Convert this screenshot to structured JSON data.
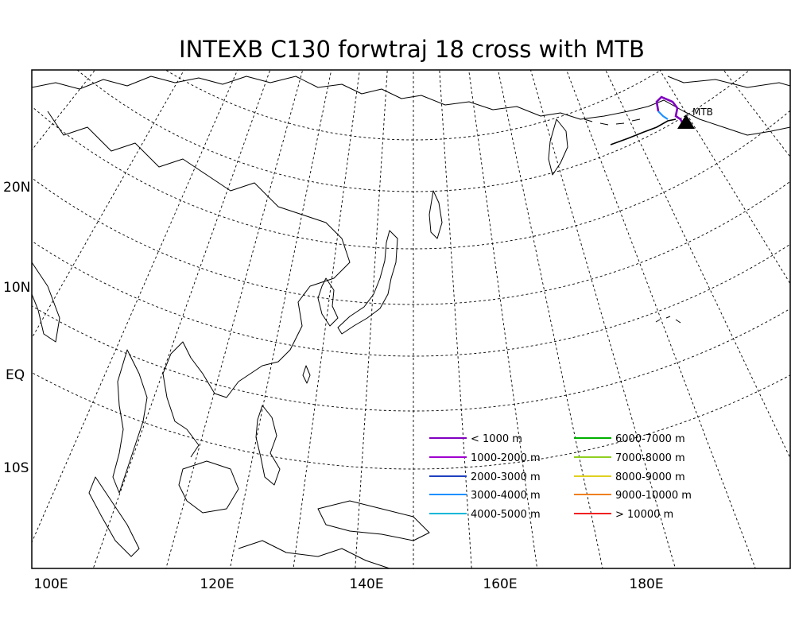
{
  "title": "INTEXB C130 forwtraj 18 cross with MTB",
  "lat_labels": [
    "20N",
    "10N",
    "EQ",
    "10S"
  ],
  "lon_labels": [
    "100E",
    "120E",
    "140E",
    "160E",
    "180E"
  ],
  "site": {
    "label": "MTB"
  },
  "legend": {
    "left": [
      {
        "label": "<  1000  m",
        "color": "#8000c0"
      },
      {
        "label": "1000-2000  m",
        "color": "#a000d0"
      },
      {
        "label": "2000-3000  m",
        "color": "#2040c0"
      },
      {
        "label": "3000-4000  m",
        "color": "#1e90ff"
      },
      {
        "label": "4000-5000  m",
        "color": "#00b8d8"
      }
    ],
    "right": [
      {
        "label": "6000-7000  m",
        "color": "#00b000"
      },
      {
        "label": "7000-8000  m",
        "color": "#90d020"
      },
      {
        "label": "8000-9000  m",
        "color": "#e0d020"
      },
      {
        "label": "9000-10000  m",
        "color": "#f08020"
      },
      {
        "label": ">  10000  m",
        "color": "#f02020"
      }
    ]
  }
}
